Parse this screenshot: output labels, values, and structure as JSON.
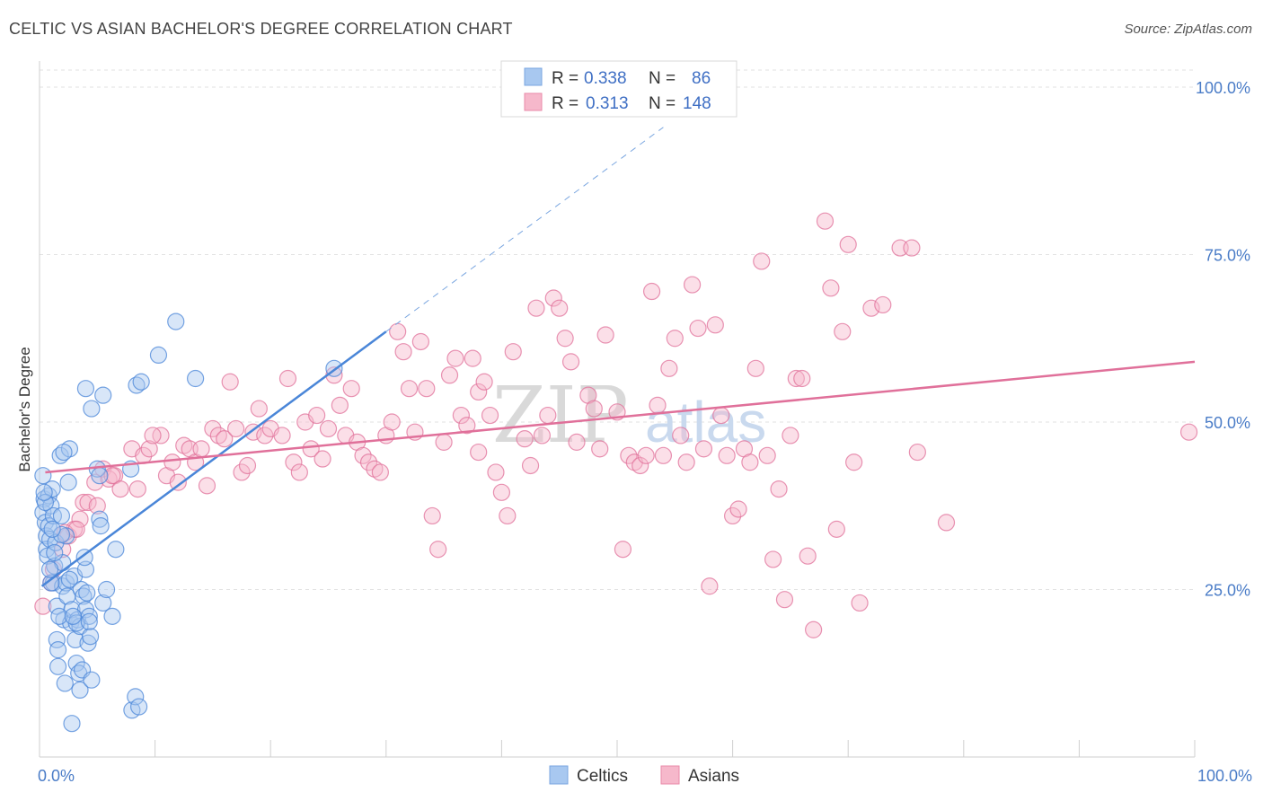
{
  "title": "CELTIC VS ASIAN BACHELOR'S DEGREE CORRELATION CHART",
  "source": "Source: ZipAtlas.com",
  "watermark": {
    "zip": "ZIP",
    "atlas": "atlas"
  },
  "legend": {
    "rows": [
      {
        "r_label": "R =",
        "r_value": "0.338",
        "n_label": "N =",
        "n_value": "86",
        "color": "#a8c8f0",
        "stroke": "#7aa6e0"
      },
      {
        "r_label": "R =",
        "r_value": "0.313",
        "n_label": "N =",
        "n_value": "148",
        "color": "#f6b8cb",
        "stroke": "#e98aa8"
      }
    ]
  },
  "bottom_legend": [
    {
      "label": "Celtics",
      "color": "#a8c8f0",
      "stroke": "#7aa6e0"
    },
    {
      "label": "Asians",
      "color": "#f6b8cb",
      "stroke": "#e98aa8"
    }
  ],
  "chart_data": {
    "type": "scatter",
    "xlabel": "",
    "ylabel": "Bachelor's Degree",
    "xlim": [
      0,
      100
    ],
    "ylim": [
      0,
      100
    ],
    "x_tick_labels": [
      "0.0%",
      "100.0%"
    ],
    "y_tick_labels": [
      "25.0%",
      "50.0%",
      "75.0%",
      "100.0%"
    ],
    "y_ticks": [
      25,
      50,
      75,
      100
    ],
    "grid": true,
    "legend_position": "top-center",
    "series": [
      {
        "name": "Celtics",
        "color": "#4a86d8",
        "fill": "#a8c8f0",
        "trend": {
          "x0": 0.2,
          "y0": 25.5,
          "x1": 30,
          "y1": 63.5,
          "dashed_to_x": 54,
          "dashed_to_y": 94
        },
        "points": [
          [
            0.3,
            42
          ],
          [
            0.4,
            38.5
          ],
          [
            0.3,
            36.5
          ],
          [
            0.5,
            35
          ],
          [
            0.6,
            33
          ],
          [
            0.6,
            31
          ],
          [
            0.7,
            30
          ],
          [
            0.8,
            39
          ],
          [
            0.8,
            34.5
          ],
          [
            0.9,
            32.5
          ],
          [
            1.0,
            37.5
          ],
          [
            1.1,
            40
          ],
          [
            1.2,
            36
          ],
          [
            1.2,
            26
          ],
          [
            1.3,
            28.5
          ],
          [
            1.4,
            32
          ],
          [
            1.5,
            22.5
          ],
          [
            1.5,
            17.5
          ],
          [
            1.6,
            16
          ],
          [
            1.6,
            13.5
          ],
          [
            1.8,
            45
          ],
          [
            1.9,
            36
          ],
          [
            2.0,
            29
          ],
          [
            2.0,
            25.5
          ],
          [
            2.1,
            20.5
          ],
          [
            2.2,
            11
          ],
          [
            2.3,
            33
          ],
          [
            2.3,
            26
          ],
          [
            2.4,
            24
          ],
          [
            2.5,
            41
          ],
          [
            2.6,
            46
          ],
          [
            2.7,
            20
          ],
          [
            2.8,
            5
          ],
          [
            2.8,
            22
          ],
          [
            3.0,
            27
          ],
          [
            3.1,
            17.5
          ],
          [
            3.2,
            14
          ],
          [
            3.3,
            20.5
          ],
          [
            3.4,
            12.5
          ],
          [
            3.5,
            10
          ],
          [
            3.5,
            19.5
          ],
          [
            3.6,
            25
          ],
          [
            3.7,
            13
          ],
          [
            3.8,
            24
          ],
          [
            4.0,
            28
          ],
          [
            4.0,
            22
          ],
          [
            4.2,
            17
          ],
          [
            4.3,
            21
          ],
          [
            4.4,
            18
          ],
          [
            4.5,
            11.5
          ],
          [
            4.0,
            55
          ],
          [
            4.5,
            52
          ],
          [
            5.0,
            43
          ],
          [
            5.2,
            42
          ],
          [
            5.2,
            35.5
          ],
          [
            5.3,
            34.5
          ],
          [
            5.5,
            23
          ],
          [
            5.5,
            54
          ],
          [
            5.8,
            25
          ],
          [
            6.3,
            21
          ],
          [
            6.6,
            31
          ],
          [
            8.0,
            7
          ],
          [
            8.3,
            9
          ],
          [
            8.6,
            7.5
          ],
          [
            8.4,
            55.5
          ],
          [
            8.8,
            56
          ],
          [
            10.3,
            60
          ],
          [
            11.8,
            65
          ],
          [
            13.5,
            56.5
          ],
          [
            4.1,
            24.5
          ],
          [
            1.0,
            26
          ],
          [
            0.5,
            38
          ],
          [
            3.9,
            29.8
          ],
          [
            1.7,
            21
          ],
          [
            2.6,
            26.5
          ],
          [
            1.3,
            30.5
          ],
          [
            0.9,
            28
          ],
          [
            3.2,
            20
          ],
          [
            2.1,
            45.5
          ],
          [
            0.4,
            39.5
          ],
          [
            2.9,
            21
          ],
          [
            4.3,
            20.2
          ],
          [
            7.9,
            43
          ],
          [
            25.5,
            58
          ],
          [
            1.9,
            33.2
          ],
          [
            1.1,
            34
          ]
        ]
      },
      {
        "name": "Asians",
        "color": "#e0709a",
        "fill": "#f6b8cb",
        "trend": {
          "x0": 0.5,
          "y0": 42.5,
          "x1": 100,
          "y1": 59
        },
        "points": [
          [
            0.3,
            22.5
          ],
          [
            1.0,
            26
          ],
          [
            1.2,
            28
          ],
          [
            2.0,
            31
          ],
          [
            2.5,
            33
          ],
          [
            3.0,
            34
          ],
          [
            3.5,
            35.5
          ],
          [
            3.8,
            38
          ],
          [
            4.2,
            38
          ],
          [
            4.8,
            41
          ],
          [
            5.5,
            43
          ],
          [
            6.0,
            41.5
          ],
          [
            6.5,
            42
          ],
          [
            7.0,
            40
          ],
          [
            8.0,
            46
          ],
          [
            8.5,
            40
          ],
          [
            9.0,
            45
          ],
          [
            9.5,
            46
          ],
          [
            10.5,
            48
          ],
          [
            11.0,
            42
          ],
          [
            11.5,
            44
          ],
          [
            12.0,
            41
          ],
          [
            12.5,
            46.5
          ],
          [
            13.0,
            46
          ],
          [
            13.5,
            44
          ],
          [
            14.0,
            46
          ],
          [
            14.5,
            40.5
          ],
          [
            15.0,
            49
          ],
          [
            15.5,
            48
          ],
          [
            16.0,
            47.5
          ],
          [
            16.5,
            56
          ],
          [
            17.0,
            49
          ],
          [
            17.5,
            42.5
          ],
          [
            18.0,
            43.5
          ],
          [
            18.5,
            48.5
          ],
          [
            19.0,
            52
          ],
          [
            19.5,
            48
          ],
          [
            20.0,
            49
          ],
          [
            21.0,
            48
          ],
          [
            21.5,
            56.5
          ],
          [
            22.0,
            44
          ],
          [
            22.5,
            42.5
          ],
          [
            23.0,
            50
          ],
          [
            23.5,
            46
          ],
          [
            24.0,
            51
          ],
          [
            24.5,
            44.5
          ],
          [
            25.0,
            49
          ],
          [
            25.5,
            57
          ],
          [
            26.0,
            52.5
          ],
          [
            26.5,
            48
          ],
          [
            27.0,
            55
          ],
          [
            27.5,
            47
          ],
          [
            28.0,
            45
          ],
          [
            28.5,
            44
          ],
          [
            29.0,
            43
          ],
          [
            29.5,
            42.5
          ],
          [
            30.0,
            48
          ],
          [
            30.5,
            50
          ],
          [
            31.0,
            63.5
          ],
          [
            31.5,
            60.5
          ],
          [
            32.0,
            55
          ],
          [
            32.5,
            48.5
          ],
          [
            33.0,
            62
          ],
          [
            33.5,
            55
          ],
          [
            34.0,
            36
          ],
          [
            34.5,
            31
          ],
          [
            35.0,
            47
          ],
          [
            35.5,
            57
          ],
          [
            36.0,
            59.5
          ],
          [
            36.5,
            51
          ],
          [
            37.0,
            49.5
          ],
          [
            37.5,
            59.5
          ],
          [
            38.0,
            54.5
          ],
          [
            38.5,
            56
          ],
          [
            39.0,
            51
          ],
          [
            39.5,
            42.5
          ],
          [
            40.0,
            39.5
          ],
          [
            40.5,
            36
          ],
          [
            41.0,
            60.5
          ],
          [
            42.0,
            47.5
          ],
          [
            42.5,
            43.5
          ],
          [
            43.0,
            67
          ],
          [
            43.5,
            48
          ],
          [
            44.0,
            51
          ],
          [
            44.5,
            68.5
          ],
          [
            45.0,
            67
          ],
          [
            45.5,
            62.5
          ],
          [
            46.0,
            59
          ],
          [
            46.5,
            47
          ],
          [
            47.5,
            54
          ],
          [
            48.0,
            52
          ],
          [
            48.5,
            46
          ],
          [
            49.0,
            63
          ],
          [
            50.0,
            51.5
          ],
          [
            50.5,
            31
          ],
          [
            51.0,
            45
          ],
          [
            51.5,
            44
          ],
          [
            52.0,
            43.5
          ],
          [
            52.5,
            45
          ],
          [
            53.0,
            69.5
          ],
          [
            53.5,
            52.5
          ],
          [
            54.0,
            45
          ],
          [
            54.5,
            58
          ],
          [
            55.0,
            62.5
          ],
          [
            55.5,
            48
          ],
          [
            56.0,
            44
          ],
          [
            56.5,
            70.5
          ],
          [
            57.0,
            64
          ],
          [
            57.5,
            46
          ],
          [
            58.0,
            25.5
          ],
          [
            58.5,
            64.5
          ],
          [
            59.0,
            51
          ],
          [
            59.5,
            45
          ],
          [
            60.0,
            36
          ],
          [
            60.5,
            37
          ],
          [
            61.0,
            46
          ],
          [
            61.5,
            44
          ],
          [
            62.0,
            58
          ],
          [
            62.5,
            74
          ],
          [
            63.0,
            45
          ],
          [
            63.5,
            29.5
          ],
          [
            64.0,
            40
          ],
          [
            64.5,
            23.5
          ],
          [
            65.0,
            48
          ],
          [
            65.5,
            56.5
          ],
          [
            66.0,
            56.5
          ],
          [
            66.5,
            30
          ],
          [
            67.0,
            19
          ],
          [
            68.0,
            80
          ],
          [
            68.5,
            70
          ],
          [
            69.0,
            34
          ],
          [
            69.5,
            63.5
          ],
          [
            70.0,
            76.5
          ],
          [
            70.5,
            44
          ],
          [
            71.0,
            23
          ],
          [
            72.0,
            67
          ],
          [
            73.0,
            67.5
          ],
          [
            74.5,
            76
          ],
          [
            75.5,
            76
          ],
          [
            78.5,
            35
          ],
          [
            99.5,
            48.5
          ],
          [
            5.0,
            37.5
          ],
          [
            9.8,
            48
          ],
          [
            2.2,
            33.5
          ],
          [
            3.2,
            34
          ],
          [
            76.0,
            45.5
          ],
          [
            6.3,
            42
          ],
          [
            38.0,
            45.5
          ]
        ]
      }
    ]
  }
}
